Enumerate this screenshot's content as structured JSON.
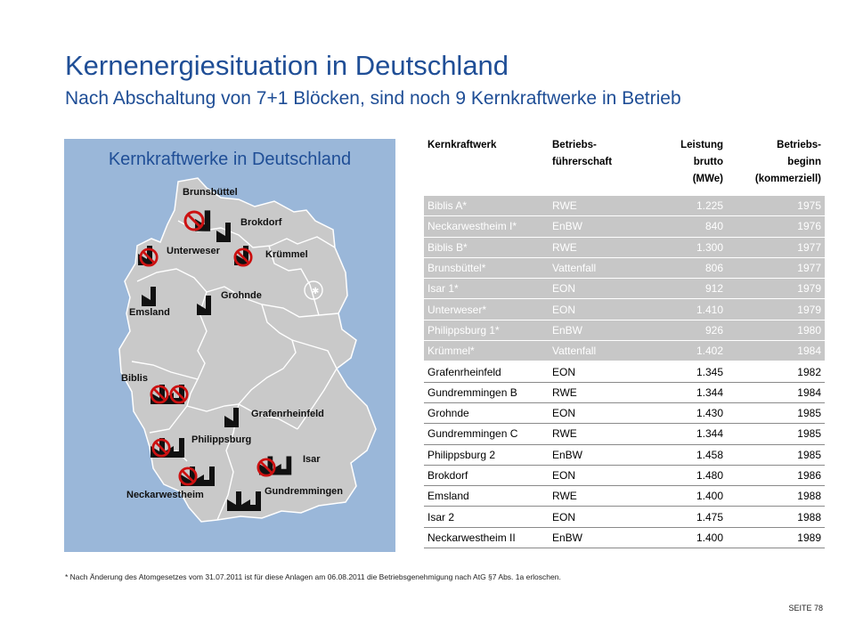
{
  "header": {
    "title": "Kernenergiesituation in Deutschland",
    "subtitle": "Nach Abschaltung von 7+1 Blöcken, sind noch 9 Kernkraftwerke in Betrieb"
  },
  "map": {
    "title": "Kernkraftwerke in Deutschland",
    "labels": {
      "brunsbuettel": "Brunsbüttel",
      "brokdorf": "Brokdorf",
      "unterweser": "Unterweser",
      "kruemmel": "Krümmel",
      "emsland": "Emsland",
      "grohnde": "Grohnde",
      "biblis": "Biblis",
      "grafenrheinfeld": "Grafenrheinfeld",
      "philippsburg": "Philippsburg",
      "isar": "Isar",
      "neckarwestheim": "Neckarwestheim",
      "gundremmingen": "Gundremmingen"
    },
    "colors": {
      "panel": "#9ab7d9",
      "land": "#c9c9c9",
      "border": "#ffffff",
      "banned": "#cc1111",
      "plant": "#111111"
    }
  },
  "table": {
    "headers": {
      "name": "Kernkraftwerk",
      "operator_l1": "Betriebs-",
      "operator_l2": "führerschaft",
      "power_l1": "Leistung",
      "power_l2": "brutto",
      "power_l3": "(MWe)",
      "start_l1": "Betriebs-",
      "start_l2": "beginn",
      "start_l3": "(kommerziell)"
    },
    "rows": [
      {
        "name": "Biblis A*",
        "operator": "RWE",
        "power": "1.225",
        "start": "1975",
        "status": "off"
      },
      {
        "name": "Neckarwestheim I*",
        "operator": "EnBW",
        "power": "840",
        "start": "1976",
        "status": "off"
      },
      {
        "name": "Biblis B*",
        "operator": "RWE",
        "power": "1.300",
        "start": "1977",
        "status": "off"
      },
      {
        "name": "Brunsbüttel*",
        "operator": "Vattenfall",
        "power": "806",
        "start": "1977",
        "status": "off"
      },
      {
        "name": "Isar 1*",
        "operator": "EON",
        "power": "912",
        "start": "1979",
        "status": "off"
      },
      {
        "name": "Unterweser*",
        "operator": "EON",
        "power": "1.410",
        "start": "1979",
        "status": "off"
      },
      {
        "name": "Philippsburg 1*",
        "operator": "EnBW",
        "power": "926",
        "start": "1980",
        "status": "off"
      },
      {
        "name": "Krümmel*",
        "operator": "Vattenfall",
        "power": "1.402",
        "start": "1984",
        "status": "off"
      },
      {
        "name": "Grafenrheinfeld",
        "operator": "EON",
        "power": "1.345",
        "start": "1982",
        "status": "on"
      },
      {
        "name": "Gundremmingen B",
        "operator": "RWE",
        "power": "1.344",
        "start": "1984",
        "status": "on"
      },
      {
        "name": "Grohnde",
        "operator": "EON",
        "power": "1.430",
        "start": "1985",
        "status": "on"
      },
      {
        "name": "Gundremmingen C",
        "operator": "RWE",
        "power": "1.344",
        "start": "1985",
        "status": "on"
      },
      {
        "name": "Philippsburg 2",
        "operator": "EnBW",
        "power": "1.458",
        "start": "1985",
        "status": "on"
      },
      {
        "name": "Brokdorf",
        "operator": "EON",
        "power": "1.480",
        "start": "1986",
        "status": "on"
      },
      {
        "name": "Emsland",
        "operator": "RWE",
        "power": "1.400",
        "start": "1988",
        "status": "on"
      },
      {
        "name": "Isar 2",
        "operator": "EON",
        "power": "1.475",
        "start": "1988",
        "status": "on"
      },
      {
        "name": "Neckarwestheim II",
        "operator": "EnBW",
        "power": "1.400",
        "start": "1989",
        "status": "on"
      }
    ]
  },
  "footnote": "* Nach Änderung des Atomgesetzes vom 31.07.2011 ist für diese Anlagen am 06.08.2011 die Betriebsgenehmigung nach AtG §7 Abs. 1a erloschen.",
  "page_label": "SEITE 78"
}
